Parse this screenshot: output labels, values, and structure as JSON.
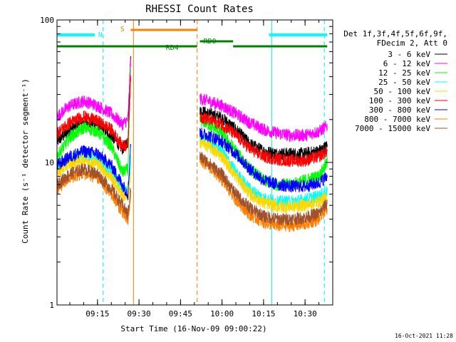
{
  "chart_data": {
    "type": "line",
    "title": "RHESSI Count Rates",
    "xlabel": "Start Time (16-Nov-09 09:00:22)",
    "ylabel": "Count Rate (s⁻¹ detector segment⁻¹)",
    "ylog": true,
    "xlim": [
      "09:00:22",
      "10:40:00"
    ],
    "ylim": [
      1,
      100
    ],
    "xticks": [
      "09:15",
      "09:30",
      "09:45",
      "10:00",
      "10:15",
      "10:30"
    ],
    "yticks": [
      "1",
      "10",
      "100"
    ],
    "legend_position": "right",
    "legend_header": [
      "Det 1f,3f,4f,5f,6f,9f,",
      "FDecim 2, Att 0"
    ],
    "series": [
      {
        "name": "3 - 6 keV",
        "color": "#000000",
        "x": [
          "09:00:22",
          "09:05",
          "09:10",
          "09:15",
          "09:20",
          "09:24",
          "09:26",
          "09:27",
          "09:52",
          "09:55",
          "10:00",
          "10:05",
          "10:10",
          "10:15",
          "10:20",
          "10:25",
          "10:30",
          "10:35",
          "10:38"
        ],
        "values": [
          14,
          17,
          19,
          18.5,
          15.5,
          12.5,
          14,
          60,
          23,
          22,
          20.5,
          17,
          13.5,
          12,
          11.5,
          11.5,
          11.5,
          12,
          13
        ]
      },
      {
        "name": "6 - 12 keV",
        "color": "#ff00ff",
        "x": [
          "09:00:22",
          "09:05",
          "09:10",
          "09:15",
          "09:20",
          "09:24",
          "09:26",
          "09:27",
          "09:52",
          "09:55",
          "10:00",
          "10:05",
          "10:10",
          "10:15",
          "10:20",
          "10:25",
          "10:30",
          "10:35",
          "10:38"
        ],
        "values": [
          21,
          25,
          27,
          25,
          22,
          18.5,
          20,
          55,
          28,
          27,
          25,
          22,
          19,
          17,
          16,
          15.5,
          15.5,
          16.5,
          18
        ]
      },
      {
        "name": "12 - 25 keV",
        "color": "#00ff00",
        "x": [
          "09:00:22",
          "09:05",
          "09:10",
          "09:15",
          "09:20",
          "09:24",
          "09:26",
          "09:27",
          "09:52",
          "09:55",
          "10:00",
          "10:05",
          "10:10",
          "10:15",
          "10:20",
          "10:25",
          "10:30",
          "10:35",
          "10:38"
        ],
        "values": [
          11,
          15,
          17.5,
          16.5,
          13,
          8.5,
          9,
          45,
          20,
          18.5,
          16,
          12,
          9,
          7.5,
          7,
          7,
          7.5,
          8,
          10
        ]
      },
      {
        "name": "25 - 50 keV",
        "color": "#00ffff",
        "x": [
          "09:00:22",
          "09:05",
          "09:10",
          "09:15",
          "09:20",
          "09:24",
          "09:26",
          "09:27",
          "09:52",
          "09:55",
          "10:00",
          "10:05",
          "10:10",
          "10:15",
          "10:20",
          "10:25",
          "10:30",
          "10:35",
          "10:38"
        ],
        "values": [
          9,
          10.5,
          11.5,
          10.5,
          8.5,
          6.5,
          6,
          10,
          15,
          14,
          12,
          8.5,
          6.5,
          5.6,
          5.3,
          5.3,
          5.5,
          5.8,
          6.3
        ]
      },
      {
        "name": "50 - 100 keV",
        "color": "#ffd800",
        "x": [
          "09:00:22",
          "09:05",
          "09:10",
          "09:15",
          "09:20",
          "09:24",
          "09:26",
          "09:27",
          "09:52",
          "09:55",
          "10:00",
          "10:05",
          "10:10",
          "10:15",
          "10:20",
          "10:25",
          "10:30",
          "10:35",
          "10:38"
        ],
        "values": [
          8.5,
          9.8,
          10.5,
          9.8,
          7.8,
          6,
          5.6,
          8,
          14,
          13,
          11,
          8,
          6,
          5.2,
          4.9,
          4.9,
          5,
          5.3,
          5.7
        ]
      },
      {
        "name": "100 - 300 keV",
        "color": "#ff0000",
        "x": [
          "09:00:22",
          "09:05",
          "09:10",
          "09:15",
          "09:20",
          "09:24",
          "09:26",
          "09:27",
          "09:52",
          "09:55",
          "10:00",
          "10:05",
          "10:10",
          "10:15",
          "10:20",
          "10:25",
          "10:30",
          "10:35",
          "10:38"
        ],
        "values": [
          16,
          19,
          21,
          19.5,
          17,
          13,
          13.5,
          40,
          21,
          20,
          18.5,
          15.5,
          12.5,
          11,
          10.5,
          10.3,
          10.3,
          11,
          12
        ]
      },
      {
        "name": "300 - 800 keV",
        "color": "#0000ff",
        "x": [
          "09:00:22",
          "09:05",
          "09:10",
          "09:15",
          "09:20",
          "09:24",
          "09:26",
          "09:27",
          "09:52",
          "09:55",
          "10:00",
          "10:05",
          "10:10",
          "10:15",
          "10:20",
          "10:25",
          "10:30",
          "10:35",
          "10:38"
        ],
        "values": [
          9.5,
          11,
          12,
          11.5,
          9.5,
          7,
          6,
          14,
          16,
          15.5,
          14,
          11.5,
          9,
          7.5,
          7,
          6.8,
          6.8,
          7.2,
          8
        ]
      },
      {
        "name": "800 - 7000 keV",
        "color": "#ff7f00",
        "x": [
          "09:00:22",
          "09:05",
          "09:10",
          "09:15",
          "09:20",
          "09:24",
          "09:26",
          "09:27",
          "09:52",
          "09:55",
          "10:00",
          "10:05",
          "10:10",
          "10:15",
          "10:20",
          "10:25",
          "10:30",
          "10:35",
          "10:38"
        ],
        "values": [
          6.5,
          7.8,
          8.4,
          7.8,
          6,
          4.5,
          3.8,
          6,
          10.5,
          9.5,
          7.5,
          5.5,
          4.3,
          3.8,
          3.6,
          3.6,
          3.7,
          4,
          4.8
        ]
      },
      {
        "name": "7000 - 15000 keV",
        "color": "#a0522d",
        "x": [
          "09:00:22",
          "09:05",
          "09:10",
          "09:15",
          "09:20",
          "09:24",
          "09:26",
          "09:27",
          "09:52",
          "09:55",
          "10:00",
          "10:05",
          "10:10",
          "10:15",
          "10:20",
          "10:25",
          "10:30",
          "10:35",
          "10:38"
        ],
        "values": [
          7,
          8.3,
          9,
          8.3,
          6.5,
          5,
          4.3,
          6.5,
          11,
          10,
          8.2,
          6,
          4.8,
          4.2,
          4,
          4,
          4.1,
          4.4,
          5.2
        ]
      }
    ],
    "state_bars": [
      {
        "label": "N",
        "color": "#00ffff",
        "segments": [
          [
            "09:00:22",
            "09:14"
          ],
          [
            "10:17",
            "10:38"
          ]
        ]
      },
      {
        "label": "S",
        "color": "#ff7f00",
        "segments": [
          [
            "09:27",
            "09:51"
          ]
        ]
      },
      {
        "label": "RD0",
        "color": "#008000",
        "segments": [
          [
            "09:52",
            "10:04"
          ]
        ]
      },
      {
        "label": "RD4",
        "color": "#008000",
        "segments": [
          [
            "09:00:22",
            "09:51"
          ],
          [
            "10:04",
            "10:38"
          ]
        ]
      }
    ],
    "vlines": [
      {
        "color": "#00ffff",
        "style": "dashed",
        "time": "09:17"
      },
      {
        "color": "#ff7f00",
        "style": "solid",
        "time": "09:28"
      },
      {
        "color": "#ff7f00",
        "style": "dashed",
        "time": "09:51"
      },
      {
        "color": "#00ffff",
        "style": "solid",
        "time": "10:18"
      },
      {
        "color": "#00ffff",
        "style": "dashed",
        "time": "10:37"
      }
    ]
  },
  "timestamp": "16-Oct-2021 11:28"
}
